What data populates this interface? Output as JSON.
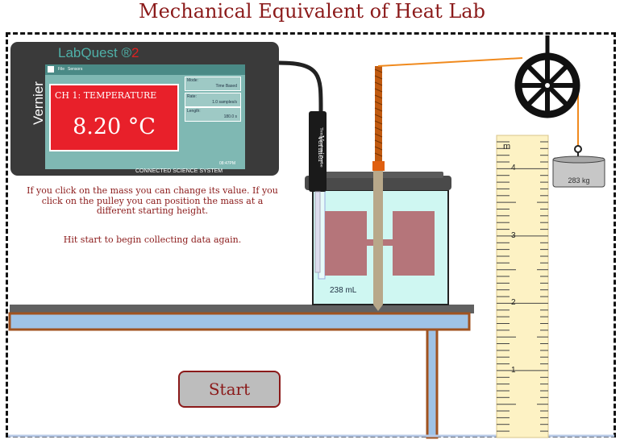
{
  "page": {
    "title": "Mechanical Equivalent of Heat Lab"
  },
  "labquest": {
    "brand": "LabQuest",
    "brand_mark": " ®",
    "brand_version": "2",
    "side_label": "Vernier",
    "menu": [
      "File",
      "Sensors"
    ],
    "channel_label": "CH 1: TEMPERATURE",
    "reading": "8.20 °C",
    "info": [
      {
        "key": "Mode:",
        "value": "Time Based"
      },
      {
        "key": "Rate:",
        "value": "1.0 samples/s"
      },
      {
        "key": "Length:",
        "value": "180.0 s"
      }
    ],
    "clock": "08:47PM",
    "footer": "CONNECTED SCIENCE SYSTEM"
  },
  "instructions": {
    "line": "If you click on the mass you can change its value. If you click on the pulley you can position the mass at a different starting height.",
    "hint": "Hit start to begin collecting data again."
  },
  "probe": {
    "brand": "Vernier",
    "name": "Temperature Probe"
  },
  "beaker": {
    "volume": "238 mL"
  },
  "ruler": {
    "unit": "m",
    "ticks": [
      "4",
      "3",
      "2",
      "1"
    ]
  },
  "mass": {
    "label": "283 kg"
  },
  "controls": {
    "start_label": "Start"
  },
  "colors": {
    "accent": "#8b1a1a",
    "screen_red": "#e8202a",
    "rope": "#f08a1e",
    "water": "#cff7f2"
  }
}
